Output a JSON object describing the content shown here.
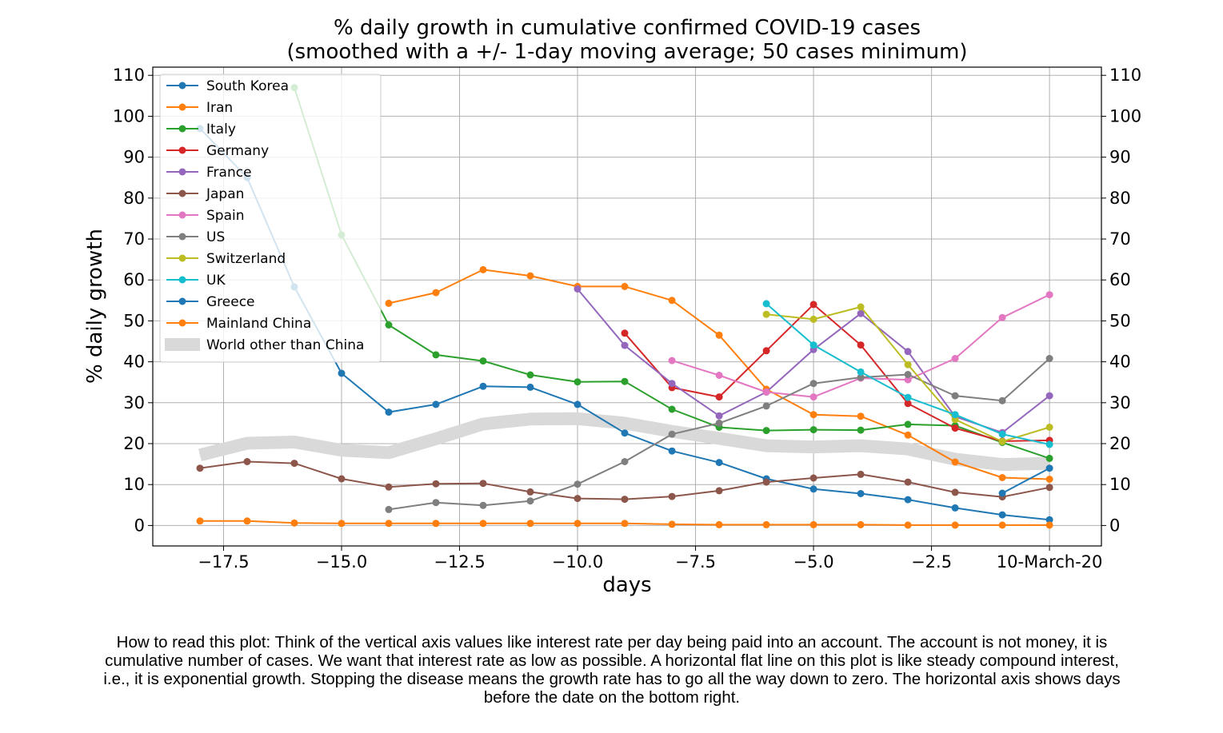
{
  "chart_data": {
    "type": "line",
    "title": "% daily growth in cumulative confirmed COVID-19 cases",
    "subtitle": "(smoothed with a +/- 1-day moving average; 50 cases minimum)",
    "xlabel": "days",
    "ylabel": "% daily growth",
    "xlim": [
      -19.0,
      1.1
    ],
    "ylim": [
      -5,
      112
    ],
    "x_ticks": [
      -17.5,
      -15.0,
      -12.5,
      -10.0,
      -7.5,
      -5.0,
      -2.5,
      0
    ],
    "x_tick_labels": [
      "−17.5",
      "−15.0",
      "−12.5",
      "−10.0",
      "−7.5",
      "−5.0",
      "−2.5",
      "10-March-20"
    ],
    "y_ticks": [
      0,
      10,
      20,
      30,
      40,
      50,
      60,
      70,
      80,
      90,
      100,
      110
    ],
    "grid": true,
    "legend_position": "upper-left",
    "series": [
      {
        "name": "South Korea",
        "color": "#1f77b4",
        "x": [
          -18,
          -17,
          -16,
          -15,
          -14,
          -13,
          -12,
          -11,
          -10,
          -9,
          -8,
          -7,
          -6,
          -5,
          -4,
          -3,
          -2,
          -1,
          0
        ],
        "y": [
          97,
          85,
          58.3,
          37.2,
          27.7,
          29.6,
          34,
          33.8,
          29.6,
          22.6,
          18.2,
          15.4,
          11.4,
          8.9,
          7.8,
          6.3,
          4.3,
          2.6,
          1.4
        ]
      },
      {
        "name": "Iran",
        "color": "#ff7f0e",
        "x": [
          -14,
          -13,
          -12,
          -11,
          -10,
          -9,
          -8,
          -7,
          -6,
          -5,
          -4,
          -3,
          -2,
          -1,
          0
        ],
        "y": [
          54.3,
          56.9,
          62.5,
          61,
          58.4,
          58.4,
          55,
          46.5,
          33.3,
          27.1,
          26.7,
          22.1,
          15.5,
          11.7,
          11.3
        ]
      },
      {
        "name": "Italy",
        "color": "#2ca02c",
        "x": [
          -16,
          -15,
          -14,
          -13,
          -12,
          -11,
          -10,
          -9,
          -8,
          -7,
          -6,
          -5,
          -4,
          -3,
          -2,
          -1,
          0
        ],
        "y": [
          107,
          71,
          49,
          41.7,
          40.2,
          36.8,
          35.1,
          35.2,
          28.4,
          24,
          23.2,
          23.4,
          23.3,
          24.7,
          24.4,
          20.3,
          16.4
        ]
      },
      {
        "name": "Germany",
        "color": "#d62728",
        "x": [
          -9,
          -8,
          -7,
          -6,
          -5,
          -4,
          -3,
          -2,
          -1,
          0
        ],
        "y": [
          47,
          33.7,
          31.4,
          42.7,
          54,
          44.1,
          29.8,
          23.8,
          20.6,
          20.8
        ]
      },
      {
        "name": "France",
        "color": "#9467bd",
        "x": [
          -10,
          -9,
          -8,
          -7,
          -6,
          -5,
          -4,
          -3,
          -2,
          -1,
          0
        ],
        "y": [
          57.8,
          44,
          34.7,
          26.8,
          32.6,
          43,
          51.8,
          42.5,
          26.6,
          22.7,
          31.7
        ]
      },
      {
        "name": "Japan",
        "color": "#8c564b",
        "x": [
          -18,
          -17,
          -16,
          -15,
          -14,
          -13,
          -12,
          -11,
          -10,
          -9,
          -8,
          -7,
          -6,
          -5,
          -4,
          -3,
          -2,
          -1,
          0
        ],
        "y": [
          14,
          15.6,
          15.2,
          11.4,
          9.4,
          10.2,
          10.3,
          8.2,
          6.6,
          6.4,
          7.1,
          8.5,
          10.6,
          11.6,
          12.5,
          10.6,
          8.1,
          7,
          9.3
        ]
      },
      {
        "name": "Spain",
        "color": "#e377c2",
        "x": [
          -8,
          -7,
          -6,
          -5,
          -4,
          -3,
          -2,
          -1,
          0
        ],
        "y": [
          40.3,
          36.7,
          32.6,
          31.4,
          36,
          35.6,
          40.8,
          50.8,
          56.4
        ]
      },
      {
        "name": "US",
        "color": "#7f7f7f",
        "x": [
          -14,
          -13,
          -12,
          -11,
          -10,
          -9,
          -8,
          -7,
          -6,
          -5,
          -4,
          -3,
          -2,
          -1,
          0
        ],
        "y": [
          3.9,
          5.6,
          4.9,
          6,
          10.1,
          15.6,
          22.3,
          25,
          29.2,
          34.7,
          36.2,
          36.9,
          31.7,
          30.5,
          40.8
        ]
      },
      {
        "name": "Switzerland",
        "color": "#bcbd22",
        "x": [
          -6,
          -5,
          -4,
          -3,
          -2,
          -1,
          0
        ],
        "y": [
          51.6,
          50.4,
          53.4,
          39.3,
          25.9,
          20.5,
          24
        ]
      },
      {
        "name": "UK",
        "color": "#17becf",
        "x": [
          -6,
          -5,
          -4,
          -3,
          -2,
          -1,
          0
        ],
        "y": [
          54.2,
          44.1,
          37.5,
          31.3,
          27.1,
          22.3,
          19.8
        ]
      },
      {
        "name": "Greece",
        "color": "#1f77b4",
        "x": [
          -1,
          0
        ],
        "y": [
          7.9,
          14
        ]
      },
      {
        "name": "Mainland China",
        "color": "#ff7f0e",
        "x": [
          -18,
          -17,
          -16,
          -15,
          -14,
          -13,
          -12,
          -11,
          -10,
          -9,
          -8,
          -7,
          -6,
          -5,
          -4,
          -3,
          -2,
          -1,
          0
        ],
        "y": [
          1.1,
          1.1,
          0.6,
          0.5,
          0.5,
          0.5,
          0.5,
          0.5,
          0.5,
          0.5,
          0.3,
          0.2,
          0.2,
          0.2,
          0.2,
          0.1,
          0.1,
          0.1,
          0.1
        ]
      },
      {
        "name": "World other than China",
        "color": "#d9d9d9",
        "x": [
          -18,
          -17,
          -16,
          -15,
          -14,
          -13,
          -12,
          -11,
          -10,
          -9,
          -8,
          -7,
          -6,
          -5,
          -4,
          -3,
          -2,
          -1,
          0
        ],
        "y": [
          17.2,
          20.1,
          20.4,
          18.4,
          17.8,
          21.2,
          24.8,
          26,
          26.1,
          25,
          23,
          21.3,
          19.5,
          19.2,
          19.5,
          18.7,
          16.2,
          14.9,
          15.2
        ]
      }
    ]
  },
  "caption": "How to read this plot: Think of the vertical axis values like interest rate per day being paid into an account. The account is not money, it is cumulative number of cases. We want that interest rate as low as possible. A horizontal flat line on this plot is like steady compound interest, i.e., it is exponential growth. Stopping the disease means the growth rate has to go all the way down to zero. The horizontal axis shows days before the date on the bottom right."
}
